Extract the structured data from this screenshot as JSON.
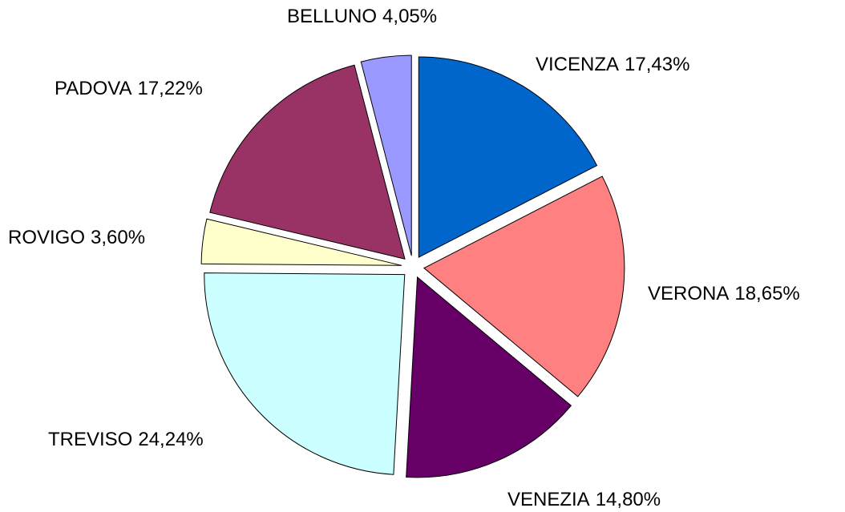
{
  "chart_data": {
    "type": "pie",
    "categories": [
      "VICENZA",
      "VERONA",
      "VENEZIA",
      "TREVISO",
      "ROVIGO",
      "PADOVA",
      "BELLUNO"
    ],
    "values": [
      17.43,
      18.65,
      14.8,
      24.24,
      3.6,
      17.22,
      4.05
    ],
    "value_labels": [
      "17,43%",
      "18,65%",
      "14,80%",
      "24,24%",
      "3,60%",
      "17,22%",
      "4,05%"
    ],
    "colors": [
      "#0066cc",
      "#ff8080",
      "#660066",
      "#ccffff",
      "#ffffcc",
      "#993366",
      "#9999ff"
    ],
    "exploded": true
  }
}
